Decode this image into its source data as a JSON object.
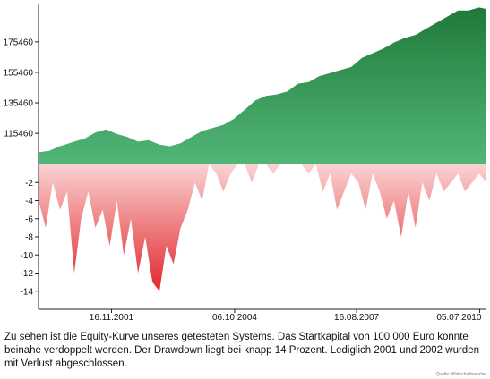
{
  "chart_data": {
    "type": "area",
    "title": "",
    "xlabel": "",
    "ylabel": "",
    "grid": false,
    "legend": "none",
    "colors": {
      "equity_top": "#1f7a3a",
      "equity_bottom": "#52b679",
      "drawdown_top": "#fbd2d2",
      "drawdown_bottom": "#e0272b",
      "axis": "#222222"
    },
    "equity_axis": {
      "ylim": [
        95000,
        200000
      ],
      "ticks": [
        115460,
        135460,
        155460,
        175460
      ],
      "tick_labels": [
        "115460",
        "135460",
        "155460",
        "175460"
      ]
    },
    "drawdown_axis": {
      "ylim": [
        -16,
        0
      ],
      "ticks": [
        -2,
        -4,
        -6,
        -8,
        -10,
        -12,
        -14
      ],
      "tick_labels": [
        "-2",
        "-4",
        "-6",
        "-8",
        "-10",
        "-12",
        "-14"
      ]
    },
    "x_axis": {
      "range": [
        "2000-03-01",
        "2010-09-01"
      ],
      "ticks": [
        "2001-11-16",
        "2004-10-06",
        "2007-08-16",
        "2010-07-05"
      ],
      "tick_labels": [
        "16.11.2001",
        "06.10.2004",
        "16.08.2007",
        "05.07.2010"
      ]
    },
    "series": [
      {
        "kind": "equity",
        "x": [
          "2000-03-01",
          "2000-06-01",
          "2000-09-01",
          "2001-01-01",
          "2001-04-01",
          "2001-07-01",
          "2001-10-01",
          "2002-01-01",
          "2002-04-01",
          "2002-07-01",
          "2002-10-01",
          "2003-01-01",
          "2003-04-01",
          "2003-07-01",
          "2003-10-01",
          "2004-01-01",
          "2004-04-01",
          "2004-07-01",
          "2004-10-01",
          "2005-01-01",
          "2005-04-01",
          "2005-07-01",
          "2005-10-01",
          "2006-01-01",
          "2006-04-01",
          "2006-07-01",
          "2006-10-01",
          "2007-01-01",
          "2007-04-01",
          "2007-07-01",
          "2007-10-01",
          "2008-01-01",
          "2008-04-01",
          "2008-07-01",
          "2008-10-01",
          "2009-01-01",
          "2009-04-01",
          "2009-07-01",
          "2009-10-01",
          "2010-01-01",
          "2010-04-01",
          "2010-07-01",
          "2010-09-01"
        ],
        "y": [
          103000,
          104000,
          107000,
          110000,
          112000,
          116000,
          118000,
          115000,
          113000,
          110000,
          111000,
          108000,
          107000,
          109000,
          113000,
          117000,
          119000,
          121000,
          125000,
          131000,
          137000,
          140000,
          141000,
          143000,
          148000,
          149000,
          153000,
          155000,
          157000,
          159000,
          165000,
          168000,
          171000,
          175000,
          178000,
          180000,
          184000,
          188000,
          192000,
          196000,
          196000,
          198000,
          197000
        ]
      },
      {
        "kind": "drawdown",
        "x": [
          "2000-03-01",
          "2000-05-01",
          "2000-07-01",
          "2000-09-01",
          "2000-11-01",
          "2001-01-01",
          "2001-03-01",
          "2001-05-01",
          "2001-07-01",
          "2001-09-01",
          "2001-11-01",
          "2002-01-01",
          "2002-03-01",
          "2002-05-01",
          "2002-07-01",
          "2002-09-01",
          "2002-11-01",
          "2003-01-01",
          "2003-03-01",
          "2003-05-01",
          "2003-07-01",
          "2003-09-01",
          "2003-11-01",
          "2004-01-01",
          "2004-03-01",
          "2004-05-01",
          "2004-07-01",
          "2004-09-01",
          "2004-11-01",
          "2005-01-01",
          "2005-03-01",
          "2005-05-01",
          "2005-07-01",
          "2005-09-01",
          "2005-11-01",
          "2006-01-01",
          "2006-03-01",
          "2006-05-01",
          "2006-07-01",
          "2006-09-01",
          "2006-11-01",
          "2007-01-01",
          "2007-03-01",
          "2007-05-01",
          "2007-07-01",
          "2007-09-01",
          "2007-11-01",
          "2008-01-01",
          "2008-03-01",
          "2008-05-01",
          "2008-07-01",
          "2008-09-01",
          "2008-11-01",
          "2009-01-01",
          "2009-03-01",
          "2009-05-01",
          "2009-07-01",
          "2009-09-01",
          "2009-11-01",
          "2010-01-01",
          "2010-03-01",
          "2010-05-01",
          "2010-07-01",
          "2010-09-01"
        ],
        "y": [
          -4,
          -7,
          -2,
          -5,
          -3,
          -12,
          -6,
          -3,
          -7,
          -5,
          -9,
          -4,
          -10,
          -6,
          -12,
          -8,
          -13,
          -14,
          -9,
          -11,
          -7,
          -5,
          -2,
          -4,
          0,
          -1,
          -3,
          -1,
          0,
          0,
          -2,
          0,
          0,
          -1,
          0,
          0,
          0,
          0,
          -1,
          0,
          -3,
          -1,
          -5,
          -3,
          -1,
          -2,
          -5,
          -1,
          -3,
          -6,
          -4,
          -8,
          -3,
          -7,
          -2,
          -4,
          -1,
          -3,
          -2,
          -1,
          -3,
          -2,
          -1,
          -2
        ]
      }
    ]
  },
  "caption": "Zu sehen ist die Equity-Kurve unseres getesteten Systems. Das Startkapital von 100 000 Euro konnte beinahe verdoppelt werden. Der Drawdown liegt bei knapp 14 Prozent. Lediglich 2001 und 2002 wurden mit Verlust abgeschlossen.",
  "source": "Quelle: Wirtschaftswoche"
}
